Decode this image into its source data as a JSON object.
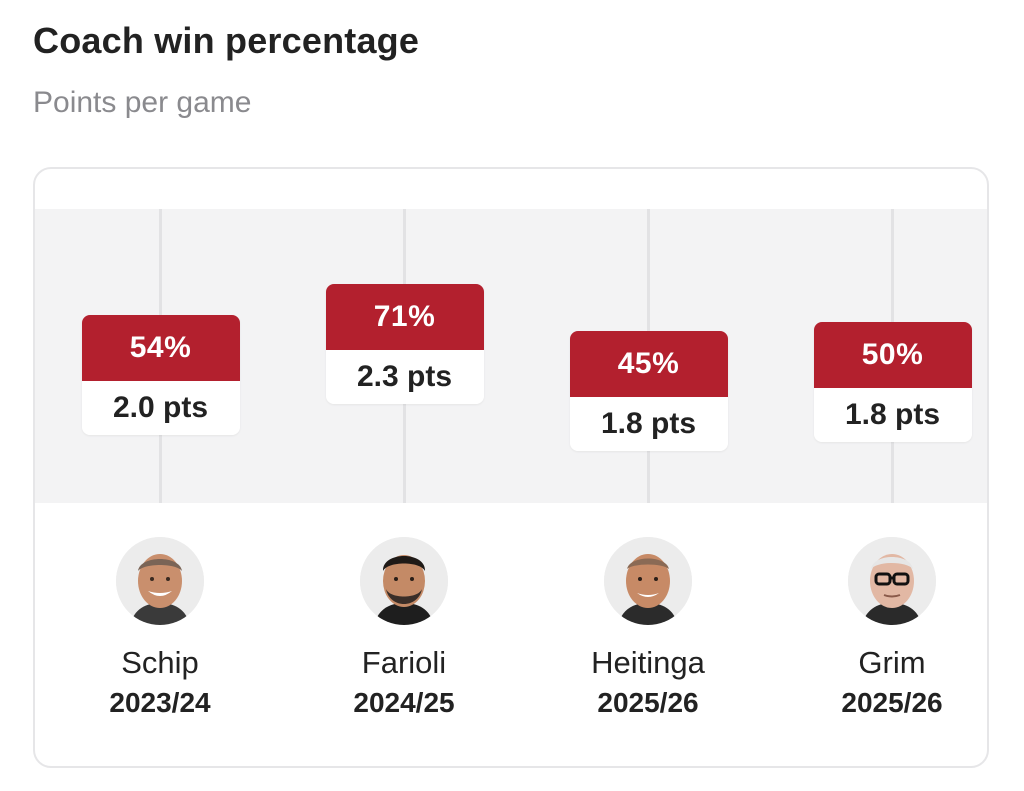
{
  "header": {
    "title": "Coach win percentage",
    "subtitle": "Points per game"
  },
  "chart_data": {
    "type": "scatter",
    "title": "Coach win percentage",
    "subtitle": "Points per game",
    "categories": [
      "Schip",
      "Farioli",
      "Heitinga",
      "Grim"
    ],
    "series": [
      {
        "name": "Win percentage",
        "values": [
          54,
          71,
          45,
          50
        ],
        "labels": [
          "54%",
          "71%",
          "45%",
          "50%"
        ]
      },
      {
        "name": "Points per game",
        "values": [
          2.0,
          2.3,
          1.8,
          1.8
        ],
        "labels": [
          "2.0 pts",
          "2.3 pts",
          "1.8 pts",
          "1.8 pts"
        ]
      }
    ],
    "ylim": [
      20,
      100
    ],
    "accent_color": "#b3202e"
  },
  "coaches": [
    {
      "name": "Schip",
      "season": "2023/24",
      "avatar": "coach-schip-avatar"
    },
    {
      "name": "Farioli",
      "season": "2024/25",
      "avatar": "coach-farioli-avatar"
    },
    {
      "name": "Heitinga",
      "season": "2025/26",
      "avatar": "coach-heitinga-avatar"
    },
    {
      "name": "Grim",
      "season": "2025/26",
      "avatar": "coach-grim-avatar"
    }
  ]
}
